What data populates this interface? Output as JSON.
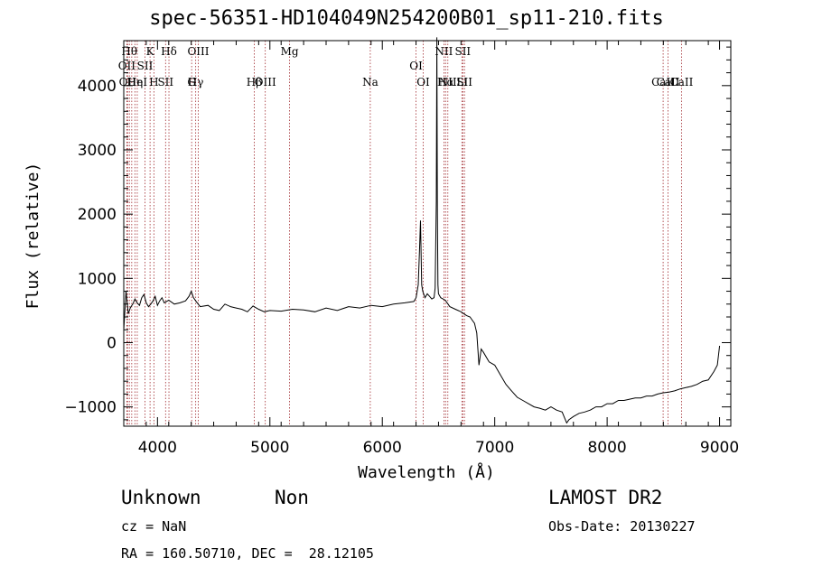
{
  "chart_data": {
    "type": "line",
    "title": "spec-56351-HD104049N254200B01_sp11-210.fits",
    "xlabel": "Wavelength (Å)",
    "ylabel": "Flux (relative)",
    "xlim": [
      3700,
      9100
    ],
    "ylim": [
      -1300,
      4700
    ],
    "xticks": [
      4000,
      5000,
      6000,
      7000,
      8000,
      9000
    ],
    "yticks": [
      -1000,
      0,
      1000,
      2000,
      3000,
      4000
    ],
    "grid": false,
    "line_color": "#000000",
    "marker_color": "#a0282d",
    "series": [
      {
        "x": [
          3700,
          3720,
          3740,
          3760,
          3780,
          3800,
          3820,
          3840,
          3860,
          3880,
          3900,
          3920,
          3940,
          3960,
          3980,
          4000,
          4020,
          4040,
          4060,
          4080,
          4100,
          4150,
          4200,
          4250,
          4280,
          4300,
          4320,
          4340,
          4380,
          4450,
          4500,
          4550,
          4600,
          4650,
          4700,
          4750,
          4800,
          4850,
          4900,
          4950,
          5000,
          5100,
          5200,
          5300,
          5400,
          5500,
          5600,
          5700,
          5800,
          5900,
          6000,
          6100,
          6200,
          6280,
          6300,
          6320,
          6330,
          6340,
          6350,
          6360,
          6380,
          6400,
          6420,
          6440,
          6460,
          6470,
          6480,
          6485,
          6490,
          6495,
          6500,
          6520,
          6560,
          6600,
          6650,
          6700,
          6750,
          6780,
          6800,
          6820,
          6840,
          6860,
          6880,
          6900,
          6950,
          7000,
          7050,
          7100,
          7150,
          7200,
          7250,
          7300,
          7350,
          7400,
          7450,
          7500,
          7550,
          7600,
          7640,
          7660,
          7700,
          7750,
          7800,
          7850,
          7900,
          7950,
          8000,
          8050,
          8100,
          8150,
          8200,
          8250,
          8300,
          8350,
          8400,
          8450,
          8500,
          8550,
          8600,
          8650,
          8700,
          8750,
          8800,
          8850,
          8900,
          8950,
          8980,
          9000
        ],
        "y": [
          200,
          800,
          450,
          550,
          600,
          680,
          620,
          580,
          700,
          750,
          620,
          560,
          600,
          650,
          720,
          580,
          650,
          700,
          620,
          640,
          660,
          600,
          620,
          650,
          720,
          800,
          700,
          650,
          560,
          580,
          520,
          500,
          600,
          560,
          540,
          520,
          480,
          570,
          520,
          480,
          500,
          490,
          520,
          510,
          480,
          540,
          500,
          560,
          540,
          580,
          560,
          600,
          620,
          640,
          700,
          900,
          1400,
          1900,
          900,
          800,
          700,
          760,
          720,
          680,
          700,
          850,
          2200,
          4750,
          2000,
          900,
          760,
          700,
          660,
          560,
          520,
          480,
          420,
          400,
          350,
          300,
          150,
          -350,
          -100,
          -150,
          -300,
          -350,
          -500,
          -650,
          -750,
          -850,
          -900,
          -950,
          -1000,
          -1020,
          -1050,
          -1000,
          -1050,
          -1080,
          -1250,
          -1200,
          -1150,
          -1100,
          -1080,
          -1050,
          -1000,
          -1000,
          -950,
          -950,
          -900,
          -900,
          -880,
          -860,
          -860,
          -830,
          -830,
          -800,
          -780,
          -770,
          -750,
          -720,
          -700,
          -680,
          -650,
          -600,
          -580,
          -450,
          -350,
          -50
        ]
      }
    ],
    "lines": [
      {
        "x": 3727,
        "label": "OII",
        "row": 1
      },
      {
        "x": 3734,
        "label": "OII",
        "row": 3
      },
      {
        "x": 3750,
        "label": "Hθ",
        "row": 0
      },
      {
        "x": 3771,
        "label": "H",
        "row": 2
      },
      {
        "x": 3799,
        "label": "Hη",
        "row": 3
      },
      {
        "x": 3820,
        "label": "HeI",
        "row": 2
      },
      {
        "x": 3889,
        "label": "SII",
        "row": 1
      },
      {
        "x": 3934,
        "label": "K",
        "row": 0
      },
      {
        "x": 3968,
        "label": "H",
        "row": 3
      },
      {
        "x": 4072,
        "label": "SII",
        "row": 2
      },
      {
        "x": 4102,
        "label": "Hδ",
        "row": 0
      },
      {
        "x": 4304,
        "label": "G",
        "row": 3
      },
      {
        "x": 4340,
        "label": "Hγ",
        "row": 2
      },
      {
        "x": 4363,
        "label": "OIII",
        "row": 0
      },
      {
        "x": 4861,
        "label": "Hβ",
        "row": 3
      },
      {
        "x": 4959,
        "label": "OIII",
        "row": 2
      },
      {
        "x": 5175,
        "label": "Mg",
        "row": 0
      },
      {
        "x": 5893,
        "label": "Na",
        "row": 3
      },
      {
        "x": 6300,
        "label": "OI",
        "row": 1
      },
      {
        "x": 6364,
        "label": "OI",
        "row": 2
      },
      {
        "x": 6548,
        "label": "NII",
        "row": 0
      },
      {
        "x": 6563,
        "label": "Hα",
        "row": 2
      },
      {
        "x": 6583,
        "label": "NII",
        "row": 3
      },
      {
        "x": 6716,
        "label": "SII",
        "row": 0
      },
      {
        "x": 6731,
        "label": "SII",
        "row": 2
      },
      {
        "x": 6708,
        "label": "Li",
        "row": 3
      },
      {
        "x": 8498,
        "label": "CaII",
        "row": 3
      },
      {
        "x": 8542,
        "label": "CaII",
        "row": 2
      },
      {
        "x": 8662,
        "label": "CaII",
        "row": 2
      }
    ]
  },
  "info": {
    "class_label": "Unknown",
    "subclass_label": "Non",
    "survey": "LAMOST DR2",
    "cz": "cz = NaN",
    "obs_date": "Obs-Date: 20130227",
    "radec": "RA = 160.50710, DEC =  28.12105"
  }
}
